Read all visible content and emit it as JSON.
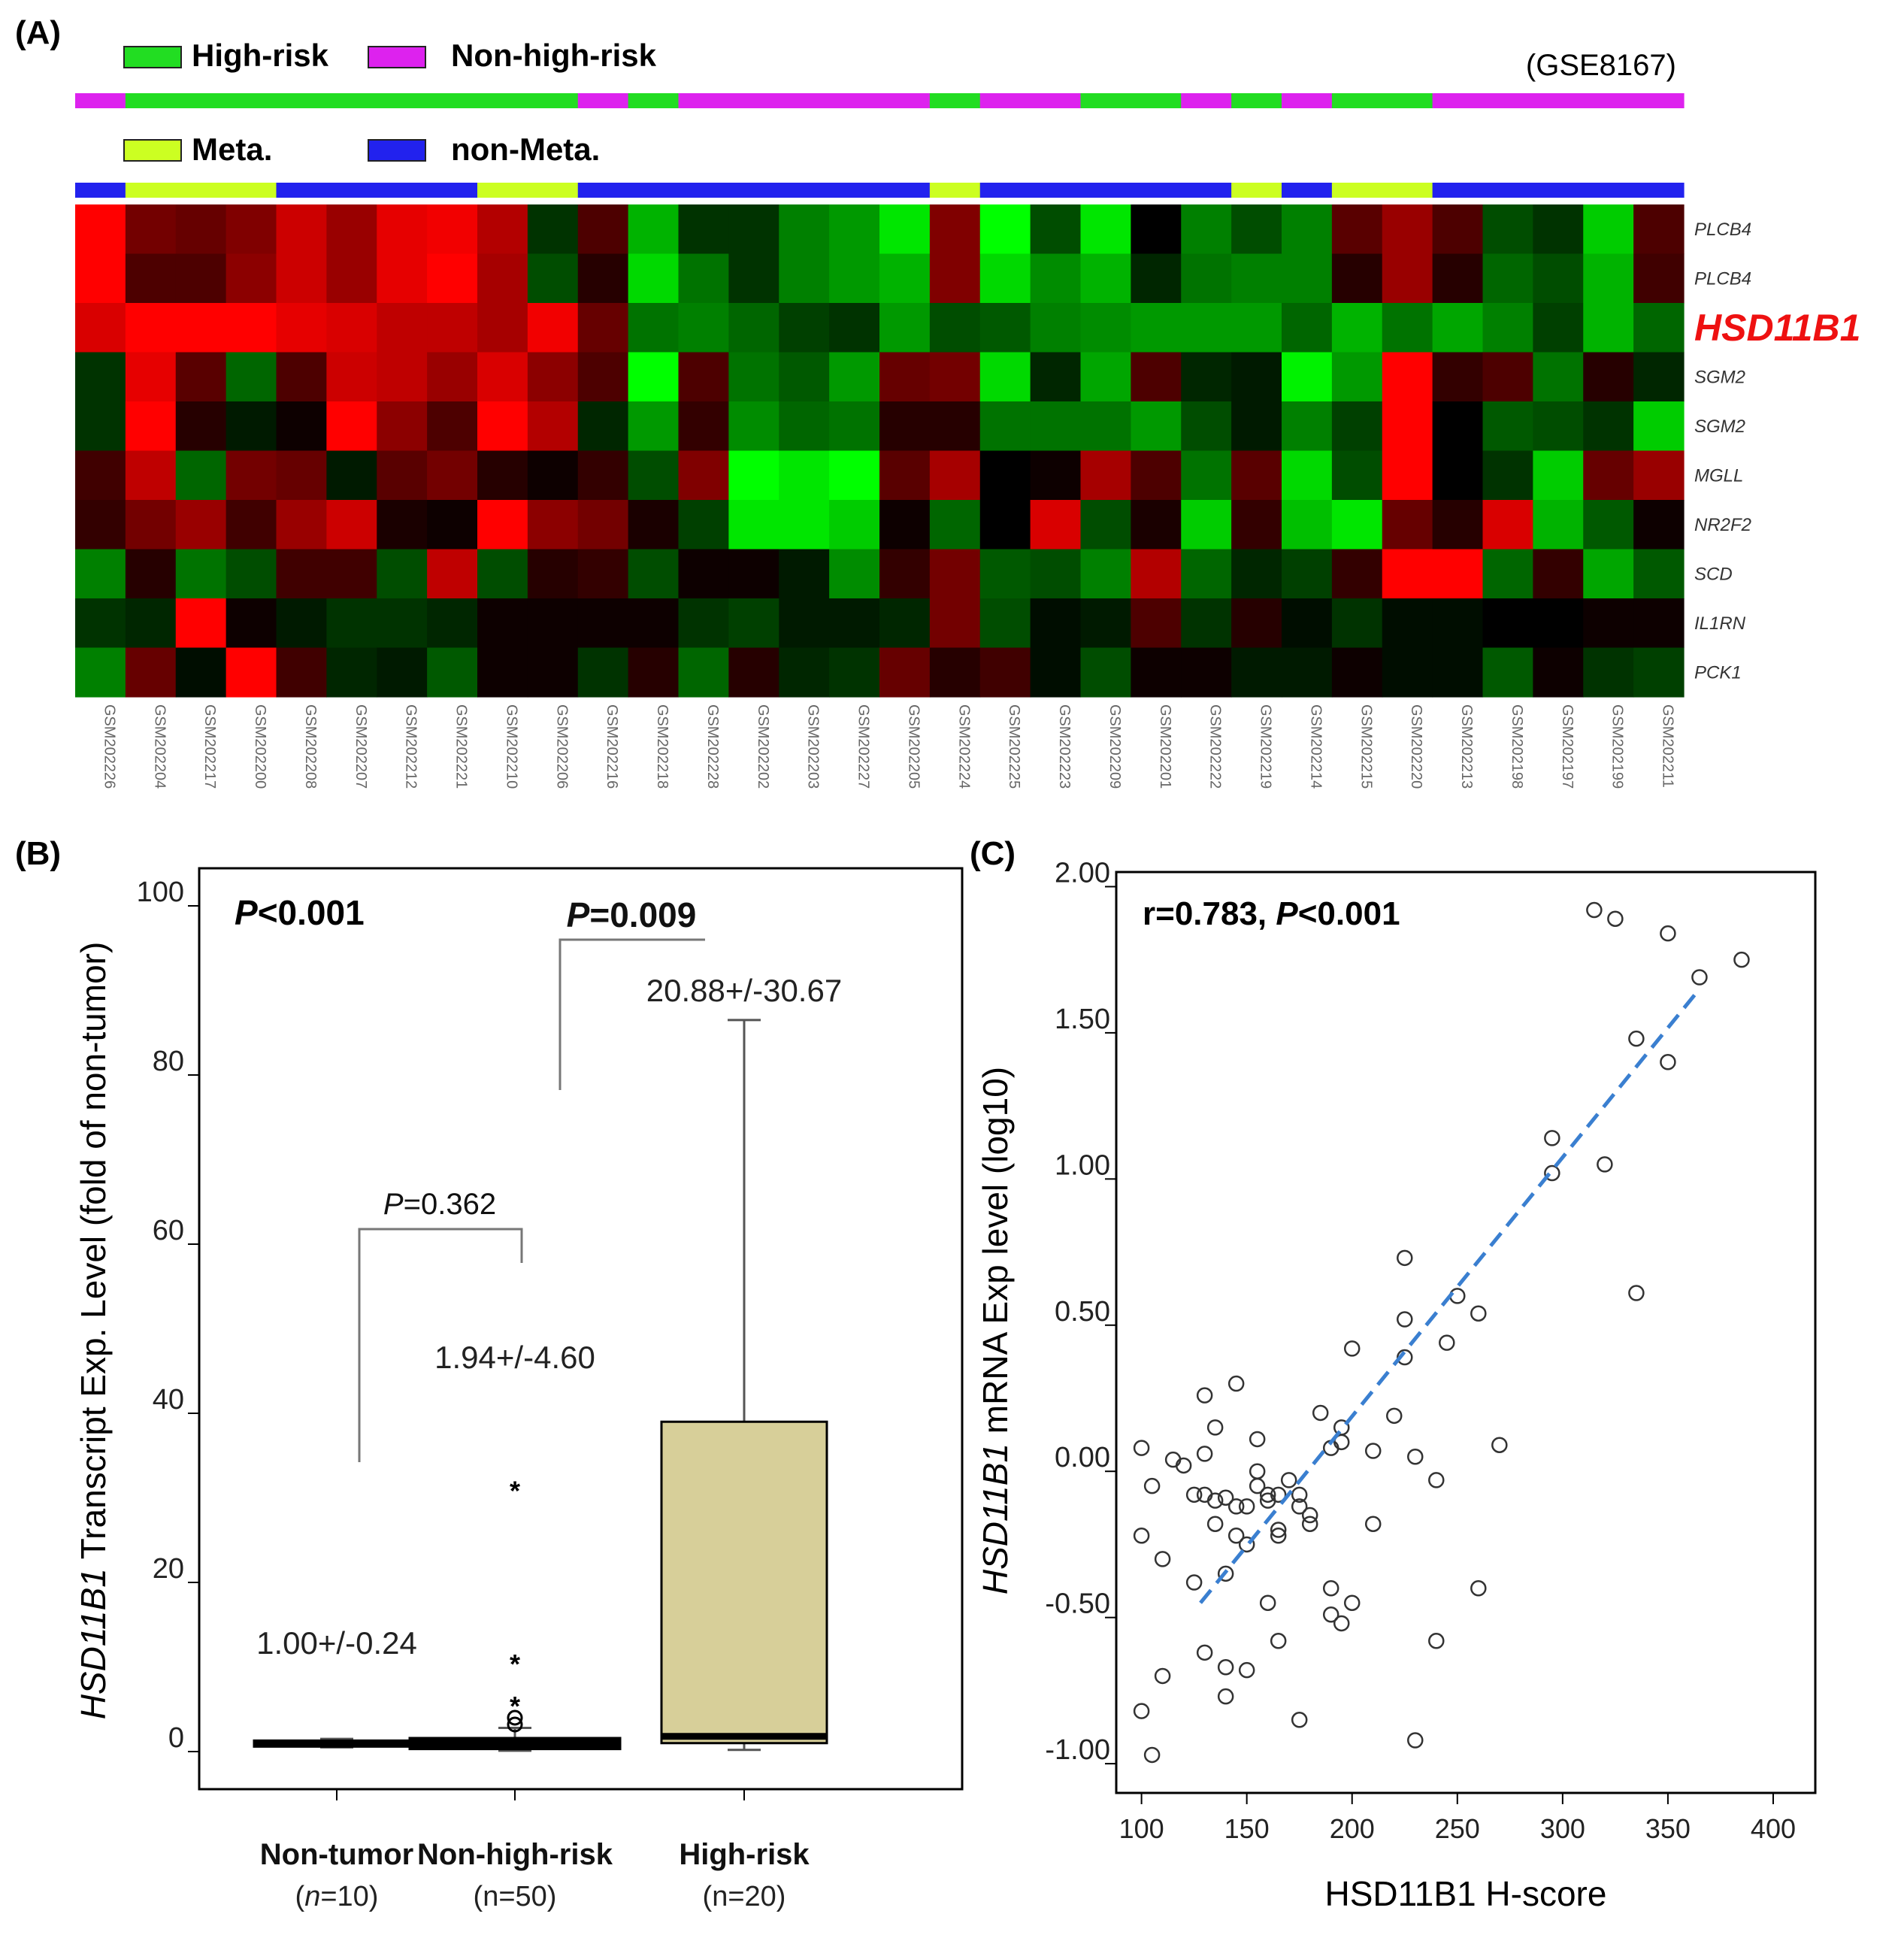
{
  "panelA": {
    "label": "(A)",
    "dataset": "(GSE8167)",
    "legend_risk": [
      {
        "label": "High-risk",
        "color": "#22dd22"
      },
      {
        "label": "Non-high-risk",
        "color": "#dd22ee"
      }
    ],
    "legend_meta": [
      {
        "label": "Meta.",
        "color": "#ccff22"
      },
      {
        "label": "non-Meta.",
        "color": "#2222ee"
      }
    ],
    "samples": [
      "GSM202226",
      "GSM202204",
      "GSM202217",
      "GSM202200",
      "GSM202208",
      "GSM202207",
      "GSM202212",
      "GSM202221",
      "GSM202210",
      "GSM202206",
      "GSM202216",
      "GSM202218",
      "GSM202228",
      "GSM202202",
      "GSM202203",
      "GSM202227",
      "GSM202205",
      "GSM202224",
      "GSM202225",
      "GSM202223",
      "GSM202209",
      "GSM202201",
      "GSM202222",
      "GSM202219",
      "GSM202214",
      "GSM202215",
      "GSM202220",
      "GSM202213",
      "GSM202198",
      "GSM202197",
      "GSM202199",
      "GSM202211"
    ],
    "risk_bar": [
      "N",
      "H",
      "H",
      "H",
      "H",
      "H",
      "H",
      "H",
      "H",
      "H",
      "N",
      "H",
      "N",
      "N",
      "N",
      "N",
      "N",
      "H",
      "N",
      "N",
      "H",
      "H",
      "N",
      "H",
      "N",
      "H",
      "H",
      "N",
      "N",
      "N",
      "N",
      "N"
    ],
    "meta_bar": [
      "n",
      "M",
      "M",
      "M",
      "n",
      "n",
      "n",
      "n",
      "M",
      "M",
      "n",
      "n",
      "n",
      "n",
      "n",
      "n",
      "n",
      "M",
      "n",
      "n",
      "n",
      "n",
      "n",
      "M",
      "n",
      "M",
      "M",
      "n",
      "n",
      "n",
      "n",
      "n"
    ],
    "genes": [
      "PLCB4",
      "PLCB4",
      "HSD11B1",
      "SGM2",
      "SGM2",
      "MGLL",
      "NR2F2",
      "SCD",
      "IL1RN",
      "PCK1"
    ],
    "highlight_gene_index": 2,
    "heatmap": [
      [
        1.0,
        0.45,
        0.4,
        0.5,
        0.8,
        0.6,
        0.9,
        0.95,
        0.7,
        -0.2,
        0.3,
        -0.7,
        -0.2,
        -0.2,
        -0.5,
        -0.6,
        -0.9,
        0.5,
        -1.0,
        -0.3,
        -0.9,
        0.0,
        -0.5,
        -0.3,
        -0.5,
        0.35,
        0.6,
        0.3,
        -0.3,
        -0.2,
        -0.8,
        0.3
      ],
      [
        1.0,
        0.3,
        0.3,
        0.55,
        0.8,
        0.6,
        0.9,
        1.0,
        0.65,
        -0.3,
        0.15,
        -0.85,
        -0.45,
        -0.2,
        -0.5,
        -0.6,
        -0.7,
        0.5,
        -0.85,
        -0.55,
        -0.7,
        -0.15,
        -0.45,
        -0.5,
        -0.5,
        0.15,
        0.6,
        0.15,
        -0.4,
        -0.3,
        -0.7,
        0.25
      ],
      [
        0.85,
        1.0,
        1.0,
        1.0,
        0.9,
        0.85,
        0.75,
        0.75,
        0.65,
        0.95,
        0.4,
        -0.45,
        -0.5,
        -0.4,
        -0.25,
        -0.2,
        -0.6,
        -0.3,
        -0.35,
        -0.5,
        -0.55,
        -0.6,
        -0.6,
        -0.6,
        -0.4,
        -0.7,
        -0.45,
        -0.65,
        -0.5,
        -0.25,
        -0.7,
        -0.4
      ],
      [
        -0.2,
        0.9,
        0.35,
        -0.4,
        0.3,
        0.8,
        0.75,
        0.6,
        0.85,
        0.55,
        0.3,
        -1.0,
        0.3,
        -0.45,
        -0.35,
        -0.6,
        0.4,
        0.45,
        -0.85,
        -0.15,
        -0.65,
        0.3,
        -0.15,
        -0.1,
        -0.95,
        -0.6,
        1.0,
        0.2,
        0.3,
        -0.45,
        0.15,
        -0.15
      ],
      [
        -0.2,
        1.0,
        0.15,
        -0.1,
        0.05,
        1.0,
        0.55,
        0.3,
        1.0,
        0.7,
        -0.15,
        -0.6,
        0.2,
        -0.55,
        -0.4,
        -0.45,
        0.15,
        0.15,
        -0.45,
        -0.45,
        -0.45,
        -0.6,
        -0.3,
        -0.1,
        -0.5,
        -0.25,
        1.0,
        0.0,
        -0.35,
        -0.3,
        -0.2,
        -0.8
      ],
      [
        0.25,
        0.75,
        -0.4,
        0.45,
        0.4,
        -0.1,
        0.35,
        0.45,
        0.15,
        0.05,
        0.2,
        -0.3,
        0.5,
        -1.0,
        -0.9,
        -1.0,
        0.35,
        0.65,
        0.0,
        0.05,
        0.65,
        0.3,
        -0.45,
        0.35,
        -0.85,
        -0.3,
        1.0,
        0.0,
        -0.2,
        -0.8,
        0.4,
        0.6
      ],
      [
        0.2,
        0.45,
        0.6,
        0.25,
        0.6,
        0.8,
        0.1,
        0.05,
        1.0,
        0.55,
        0.45,
        0.1,
        -0.25,
        -0.9,
        -0.9,
        -0.8,
        0.05,
        -0.4,
        0.0,
        0.85,
        -0.3,
        0.1,
        -0.8,
        0.2,
        -0.75,
        -0.9,
        0.4,
        0.15,
        0.85,
        -0.7,
        -0.35,
        0.05
      ],
      [
        -0.5,
        0.15,
        -0.45,
        -0.3,
        0.25,
        0.25,
        -0.3,
        0.75,
        -0.3,
        0.15,
        0.2,
        -0.3,
        0.05,
        0.05,
        -0.1,
        -0.55,
        0.2,
        0.45,
        -0.35,
        -0.3,
        -0.5,
        0.7,
        -0.4,
        -0.15,
        -0.25,
        0.2,
        1.0,
        1.0,
        -0.4,
        0.2,
        -0.65,
        -0.35
      ],
      [
        -0.2,
        -0.15,
        1.0,
        0.05,
        -0.1,
        -0.2,
        -0.2,
        -0.15,
        0.05,
        0.05,
        0.05,
        0.05,
        -0.2,
        -0.25,
        -0.1,
        -0.1,
        -0.15,
        0.45,
        -0.3,
        -0.05,
        -0.1,
        0.3,
        -0.2,
        0.15,
        -0.05,
        -0.2,
        -0.05,
        -0.05,
        0.0,
        0.0,
        0.05,
        0.05
      ],
      [
        -0.5,
        0.4,
        -0.05,
        1.0,
        0.25,
        -0.15,
        -0.1,
        -0.35,
        0.05,
        0.05,
        -0.2,
        0.15,
        -0.4,
        0.15,
        -0.15,
        -0.2,
        0.4,
        0.15,
        0.25,
        -0.05,
        -0.3,
        0.05,
        0.05,
        -0.1,
        -0.1,
        0.05,
        -0.05,
        -0.05,
        -0.35,
        0.05,
        -0.2,
        -0.25
      ]
    ]
  },
  "chart_data": [
    {
      "type": "box",
      "panel_label": "(B)",
      "ylabel_italic": "HSD11B1",
      "ylabel_rest": " Transcript Exp. Level (fold of non-tumor)",
      "ylim": [
        0,
        100
      ],
      "yticks": [
        0,
        20,
        40,
        60,
        80,
        100
      ],
      "categories": [
        "Non-tumor",
        "Non-high-risk",
        "High-risk"
      ],
      "n_prefix": [
        "(",
        "(",
        "("
      ],
      "n_italic": [
        "n",
        "",
        ""
      ],
      "n_rest": [
        "=10)",
        "n=50)",
        "n=20)"
      ],
      "mean_sd_labels": [
        "1.00+/-0.24",
        "1.94+/-4.60",
        "20.88+/-30.67"
      ],
      "boxes": [
        {
          "q1": 0.6,
          "median": 1.0,
          "q3": 1.3,
          "whisker_low": 0.5,
          "whisker_high": 1.5,
          "fill": "#000000"
        },
        {
          "q1": 0.3,
          "median": 0.9,
          "q3": 1.6,
          "whisker_low": 0.1,
          "whisker_high": 2.8,
          "fill": "#000000"
        },
        {
          "q1": 1.0,
          "median": 1.8,
          "q3": 39.0,
          "whisker_low": 0.2,
          "whisker_high": 86.5,
          "fill": "#d7cf99"
        }
      ],
      "outliers": [
        {
          "group": 1,
          "value": 31.0,
          "shape": "star"
        },
        {
          "group": 1,
          "value": 10.5,
          "shape": "star"
        },
        {
          "group": 1,
          "value": 5.5,
          "shape": "star"
        },
        {
          "group": 1,
          "value": 4.0,
          "shape": "circle"
        },
        {
          "group": 1,
          "value": 3.2,
          "shape": "circle"
        }
      ],
      "overall_p_italic": "P",
      "overall_p_rest": "<0.001",
      "comparisons": [
        {
          "from": 0,
          "to": 1,
          "p_italic": "P",
          "p_rest": "=0.362",
          "bold": false
        },
        {
          "from": 1,
          "to": 2,
          "p_italic": "P",
          "p_rest": "=0.009",
          "bold": true
        }
      ]
    },
    {
      "type": "scatter",
      "panel_label": "(C)",
      "xlabel": "HSD11B1 H-score",
      "ylabel_italic": "HSD11B1",
      "ylabel_rest": " mRNA Exp level (log10)",
      "xlim": [
        88,
        420
      ],
      "ylim": [
        -1.1,
        2.05
      ],
      "xticks": [
        100,
        150,
        200,
        250,
        300,
        350,
        400
      ],
      "yticks": [
        -1.0,
        -0.5,
        0.0,
        0.5,
        1.0,
        1.5,
        2.0
      ],
      "ytick_labels": [
        "-1.00",
        "-0.50",
        "0.00",
        "0.50",
        "1.00",
        "1.50",
        "2.00"
      ],
      "stat_r": "r=0.783, ",
      "stat_p_italic": "P",
      "stat_p_rest": "<0.001",
      "fit_line": {
        "x": [
          128,
          365
        ],
        "y": [
          -0.45,
          1.65
        ],
        "color": "#3a7fd0"
      },
      "points": {
        "x": [
          100,
          105,
          110,
          100,
          115,
          110,
          120,
          125,
          125,
          130,
          135,
          130,
          140,
          135,
          145,
          145,
          140,
          150,
          150,
          155,
          155,
          160,
          165,
          165,
          170,
          175,
          175,
          180,
          180,
          160,
          165,
          185,
          190,
          190,
          195,
          195,
          200,
          210,
          210,
          220,
          225,
          230,
          240,
          245,
          250,
          260,
          270,
          225,
          225,
          130,
          140,
          140,
          150,
          100,
          105,
          130,
          135,
          145,
          155,
          160,
          165,
          175,
          190,
          195,
          200,
          230,
          240,
          260,
          295,
          295,
          315,
          325,
          350,
          365,
          385,
          335,
          350,
          320,
          335
        ],
        "y": [
          0.08,
          -0.05,
          -0.3,
          -0.22,
          0.04,
          -0.7,
          0.02,
          -0.08,
          -0.38,
          -0.08,
          -0.1,
          0.06,
          -0.09,
          -0.18,
          -0.12,
          -0.22,
          -0.35,
          -0.12,
          -0.25,
          0.11,
          -0.05,
          -0.1,
          -0.2,
          -0.08,
          -0.03,
          -0.08,
          -0.12,
          -0.15,
          -0.18,
          -0.45,
          -0.58,
          0.2,
          0.08,
          -0.4,
          0.1,
          0.15,
          0.42,
          -0.18,
          0.07,
          0.19,
          0.52,
          0.05,
          -0.03,
          0.44,
          0.6,
          0.54,
          0.09,
          0.73,
          0.39,
          -0.62,
          -0.67,
          -0.77,
          -0.68,
          -0.82,
          -0.97,
          0.26,
          0.15,
          0.3,
          0.0,
          -0.08,
          -0.22,
          -0.85,
          -0.49,
          -0.52,
          -0.45,
          -0.92,
          -0.58,
          -0.4,
          1.14,
          1.02,
          1.92,
          1.89,
          1.84,
          1.69,
          1.75,
          1.48,
          1.4,
          1.05,
          0.61
        ]
      }
    }
  ]
}
